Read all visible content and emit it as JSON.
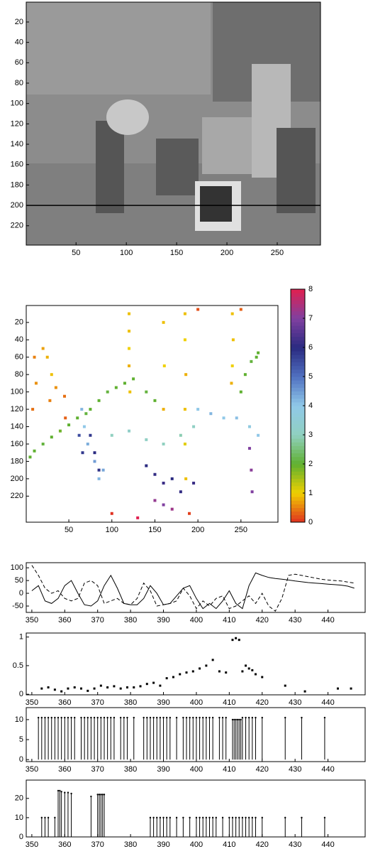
{
  "chart_data": [
    {
      "type": "image",
      "xlim": [
        0.5,
        293
      ],
      "ylim": [
        0.5,
        239
      ],
      "y_reversed": true,
      "xticks": [
        50,
        100,
        150,
        200,
        250
      ],
      "yticks": [
        20,
        40,
        60,
        80,
        100,
        120,
        140,
        160,
        180,
        200,
        220
      ],
      "hline": 200
    },
    {
      "type": "scatter",
      "xlim": [
        0.5,
        293
      ],
      "ylim": [
        0.5,
        250
      ],
      "y_reversed": true,
      "xticks": [
        50,
        100,
        150,
        200,
        250
      ],
      "yticks": [
        20,
        40,
        60,
        80,
        100,
        120,
        140,
        160,
        180,
        200,
        220
      ],
      "colormap": [
        "#e03020",
        "#f0d000",
        "#5fb030",
        "#90d0c0",
        "#90c8e8",
        "#5070c0",
        "#2a2a80",
        "#8040a0",
        "#e02050"
      ],
      "colorbar": {
        "lim": [
          0,
          8
        ],
        "ticks": [
          0,
          1,
          2,
          3,
          4,
          5,
          6,
          7,
          8
        ]
      },
      "x": [
        120,
        120,
        120,
        120,
        121,
        185,
        185,
        186,
        185,
        185,
        186,
        160,
        161,
        160,
        240,
        241,
        240,
        239,
        20,
        25,
        30,
        35,
        28,
        45,
        46,
        10,
        12,
        8,
        5,
        10,
        20,
        30,
        40,
        50,
        60,
        70,
        75,
        85,
        95,
        105,
        115,
        125,
        140,
        150,
        250,
        255,
        262,
        268,
        270,
        65,
        68,
        72,
        80,
        85,
        90,
        62,
        66,
        200,
        215,
        230,
        245,
        260,
        270,
        100,
        120,
        140,
        160,
        180,
        195,
        140,
        150,
        160,
        170,
        180,
        195,
        75,
        80,
        85,
        260,
        262,
        263,
        150,
        160,
        170,
        100,
        190,
        200,
        250,
        130
      ],
      "y": [
        10,
        30,
        50,
        70,
        100,
        10,
        40,
        80,
        120,
        160,
        200,
        20,
        70,
        120,
        10,
        40,
        70,
        90,
        50,
        60,
        80,
        95,
        110,
        105,
        130,
        60,
        90,
        120,
        175,
        168,
        160,
        152,
        145,
        138,
        130,
        125,
        120,
        110,
        100,
        95,
        90,
        85,
        100,
        110,
        100,
        80,
        65,
        60,
        55,
        120,
        140,
        160,
        180,
        200,
        190,
        150,
        170,
        120,
        125,
        130,
        130,
        140,
        150,
        150,
        145,
        155,
        160,
        150,
        140,
        185,
        195,
        205,
        200,
        215,
        205,
        150,
        170,
        190,
        165,
        190,
        215,
        225,
        230,
        235,
        240,
        240,
        5,
        5,
        245
      ],
      "values": [
        0.9,
        0.9,
        1,
        0.8,
        0.9,
        0.9,
        1,
        0.8,
        0.9,
        1.1,
        0.9,
        0.9,
        1,
        0.8,
        0.9,
        0.9,
        1,
        0.8,
        0.7,
        0.8,
        0.9,
        0.6,
        0.5,
        0.4,
        0.3,
        0.5,
        0.6,
        0.4,
        2,
        2,
        2.1,
        2,
        1.9,
        2,
        2,
        2.1,
        2,
        2,
        2.1,
        2,
        2,
        2,
        2.1,
        2,
        2,
        2,
        2.1,
        2,
        2,
        4.2,
        4,
        4.3,
        4.5,
        4.2,
        4.4,
        5.5,
        5.8,
        4,
        4.2,
        4,
        4.1,
        3.8,
        4,
        3,
        3.2,
        3.1,
        3,
        2.9,
        3.1,
        6,
        6.1,
        6.2,
        6,
        6.1,
        6.2,
        5.8,
        6,
        5.9,
        7,
        7.1,
        7,
        7.2,
        7,
        7.3,
        0,
        0.1,
        0.2,
        0.3,
        8
      ]
    },
    {
      "type": "line",
      "xlim": [
        348.3,
        451.3
      ],
      "ylim": [
        -75,
        120
      ],
      "xticks": [
        350,
        360,
        370,
        380,
        390,
        400,
        410,
        420,
        430,
        440
      ],
      "yticks": [
        -50,
        0,
        50,
        100
      ],
      "x": [
        350,
        352,
        354,
        356,
        358,
        360,
        362,
        364,
        366,
        368,
        370,
        372,
        374,
        376,
        378,
        380,
        382,
        384,
        386,
        388,
        390,
        392,
        394,
        396,
        398,
        400,
        402,
        404,
        406,
        408,
        410,
        412,
        414,
        416,
        418,
        420,
        422,
        424,
        426,
        428,
        430,
        432,
        434,
        436,
        438,
        440,
        442,
        444,
        446,
        448
      ],
      "series": [
        {
          "style": "solid",
          "color": "#000000",
          "values": [
            10,
            30,
            -30,
            -40,
            -20,
            30,
            50,
            0,
            -45,
            -50,
            -30,
            30,
            70,
            20,
            -40,
            -45,
            -45,
            -20,
            30,
            0,
            -45,
            -40,
            -10,
            20,
            30,
            -20,
            -60,
            -40,
            -60,
            -30,
            10,
            -40,
            -60,
            30,
            80,
            70,
            62,
            58,
            55,
            52,
            48,
            45,
            42,
            40,
            38,
            36,
            34,
            32,
            28,
            20
          ]
        },
        {
          "style": "dashed",
          "color": "#000000",
          "values": [
            110,
            70,
            20,
            0,
            10,
            -20,
            -30,
            -20,
            40,
            50,
            30,
            -40,
            -30,
            -20,
            -40,
            -45,
            -20,
            40,
            10,
            -50,
            -45,
            -40,
            -30,
            20,
            -10,
            -60,
            -30,
            -50,
            -20,
            -10,
            -60,
            -50,
            -30,
            -10,
            -40,
            0,
            -50,
            -70,
            -20,
            70,
            75,
            70,
            65,
            60,
            55,
            52,
            50,
            48,
            44,
            40
          ]
        }
      ]
    },
    {
      "type": "scatter",
      "xlim": [
        348.3,
        451.3
      ],
      "ylim": [
        -0.01,
        1.07
      ],
      "xticks": [
        350,
        360,
        370,
        380,
        390,
        400,
        410,
        420,
        430,
        440
      ],
      "yticks": [
        0,
        0.5,
        1
      ],
      "x": [
        353,
        355,
        357,
        359,
        361,
        363,
        365,
        367,
        369,
        371,
        373,
        375,
        377,
        379,
        381,
        383,
        385,
        387,
        389,
        391,
        393,
        395,
        397,
        399,
        401,
        403,
        405,
        407,
        409,
        411,
        412,
        413,
        414,
        415,
        416,
        417,
        418,
        420,
        427,
        433,
        443,
        447
      ],
      "y": [
        0.1,
        0.12,
        0.08,
        0.05,
        0.1,
        0.12,
        0.1,
        0.06,
        0.1,
        0.15,
        0.12,
        0.14,
        0.1,
        0.12,
        0.12,
        0.14,
        0.18,
        0.2,
        0.15,
        0.28,
        0.3,
        0.35,
        0.38,
        0.4,
        0.45,
        0.5,
        0.6,
        0.4,
        0.38,
        0.95,
        0.98,
        0.95,
        0.4,
        0.5,
        0.45,
        0.42,
        0.35,
        0.3,
        0.15,
        0.05,
        0.1,
        0.1
      ]
    },
    {
      "type": "stem",
      "xlim": [
        348.3,
        451.3
      ],
      "ylim": [
        -0.5,
        13
      ],
      "xticks": [
        350,
        360,
        370,
        380,
        390,
        400,
        410,
        420,
        430,
        440
      ],
      "yticks": [
        0,
        5,
        10
      ],
      "x": [
        352,
        353,
        354,
        355,
        356,
        357,
        358,
        359,
        360,
        361,
        362,
        363,
        365,
        366,
        367,
        368,
        369,
        370,
        371,
        372,
        373,
        374,
        375,
        377,
        378,
        379,
        381,
        384,
        385,
        386,
        387,
        388,
        389,
        390,
        391,
        392,
        394,
        396,
        397,
        398,
        399,
        400,
        401,
        402,
        403,
        404,
        405,
        407,
        408,
        409,
        411,
        411.5,
        412,
        412.5,
        413,
        413.5,
        414,
        415,
        416,
        417,
        418,
        420,
        427,
        432,
        439
      ],
      "values": [
        10.5,
        10.5,
        10.5,
        10.5,
        10.5,
        10.5,
        10.5,
        10.5,
        10.5,
        10.5,
        10.5,
        10.5,
        10.5,
        10.5,
        10.5,
        10.5,
        10.5,
        10.5,
        10.5,
        10.5,
        10.5,
        10.5,
        10.5,
        10.5,
        10.5,
        10.5,
        10.5,
        10.5,
        10.5,
        10.5,
        10.5,
        10.5,
        10.5,
        10.5,
        10.5,
        10.5,
        10.5,
        10.5,
        10.5,
        10.5,
        10.5,
        10.5,
        10.5,
        10.5,
        10.5,
        10.5,
        10.5,
        10.5,
        10.5,
        10.5,
        10,
        10,
        10,
        10,
        10,
        10,
        10.5,
        10.5,
        10.5,
        10.5,
        10.5,
        10.5,
        10.5,
        10.5,
        10.5
      ]
    },
    {
      "type": "stem",
      "xlim": [
        348.3,
        451.3
      ],
      "ylim": [
        0,
        29.5
      ],
      "xticks": [
        350,
        360,
        370,
        380,
        390,
        400,
        410,
        420,
        430,
        440
      ],
      "yticks": [
        0,
        10,
        20
      ],
      "x": [
        353,
        354,
        355,
        357,
        358,
        358.5,
        359,
        360,
        361,
        362,
        368,
        370,
        370.5,
        371,
        371.5,
        372,
        386,
        387,
        388,
        389,
        390,
        391,
        392,
        394,
        396,
        398,
        400,
        401,
        402,
        403,
        404,
        405,
        406,
        408,
        410,
        411,
        412,
        413,
        414,
        415,
        416,
        417,
        418,
        420,
        427,
        432,
        439
      ],
      "values": [
        10,
        10,
        10,
        10,
        24,
        24,
        23.5,
        23,
        23,
        22.5,
        21,
        22,
        22,
        22,
        22,
        22,
        10,
        10,
        10,
        10,
        10,
        10,
        10,
        10,
        10,
        10,
        10,
        10,
        10,
        10,
        10,
        10,
        10,
        10,
        10,
        10,
        10,
        10,
        10,
        10,
        10,
        10,
        10,
        10,
        10,
        10,
        10
      ]
    }
  ]
}
